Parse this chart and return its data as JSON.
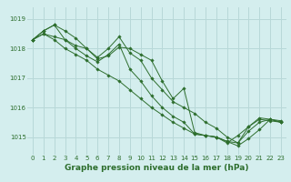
{
  "title": "Graphe pression niveau de la mer (hPa)",
  "bg_color": "#d4eeee",
  "grid_color": "#b8d8d8",
  "line_color": "#2d6e2d",
  "marker_color": "#2d6e2d",
  "ylim": [
    1014.4,
    1019.4
  ],
  "yticks": [
    1015,
    1016,
    1017,
    1018,
    1019
  ],
  "xlim": [
    -0.5,
    23.5
  ],
  "xticks": [
    0,
    1,
    2,
    3,
    4,
    5,
    6,
    7,
    8,
    9,
    10,
    11,
    12,
    13,
    14,
    15,
    16,
    17,
    18,
    19,
    20,
    21,
    22,
    23
  ],
  "series": [
    [
      1018.3,
      1018.5,
      1018.4,
      1018.3,
      1018.1,
      1018.0,
      1017.7,
      1018.0,
      1018.4,
      1017.85,
      1017.6,
      1017.0,
      1016.6,
      1016.2,
      1016.0,
      1015.8,
      1015.5,
      1015.3,
      1015.0,
      1014.8,
      1015.35,
      1015.65,
      1015.6,
      1015.55
    ],
    [
      1018.3,
      1018.6,
      1018.8,
      1018.6,
      1018.35,
      1018.0,
      1017.65,
      1017.75,
      1018.05,
      1018.0,
      1017.8,
      1017.6,
      1016.9,
      1016.3,
      1016.65,
      1015.15,
      1015.05,
      1015.0,
      1014.85,
      1014.7,
      1014.95,
      1015.25,
      1015.6,
      1015.5
    ],
    [
      1018.3,
      1018.6,
      1018.8,
      1018.3,
      1018.0,
      1017.75,
      1017.55,
      1017.8,
      1018.15,
      1017.3,
      1016.9,
      1016.4,
      1016.0,
      1015.7,
      1015.5,
      1015.1,
      1015.05,
      1015.0,
      1014.8,
      1015.05,
      1015.35,
      1015.6,
      1015.55,
      1015.5
    ],
    [
      1018.3,
      1018.5,
      1018.3,
      1018.0,
      1017.8,
      1017.6,
      1017.3,
      1017.1,
      1016.9,
      1016.6,
      1016.3,
      1016.0,
      1015.75,
      1015.5,
      1015.3,
      1015.1,
      1015.05,
      1015.0,
      1014.85,
      1014.8,
      1015.2,
      1015.5,
      1015.6,
      1015.5
    ]
  ],
  "title_fontsize": 6.5,
  "tick_fontsize": 5.0
}
